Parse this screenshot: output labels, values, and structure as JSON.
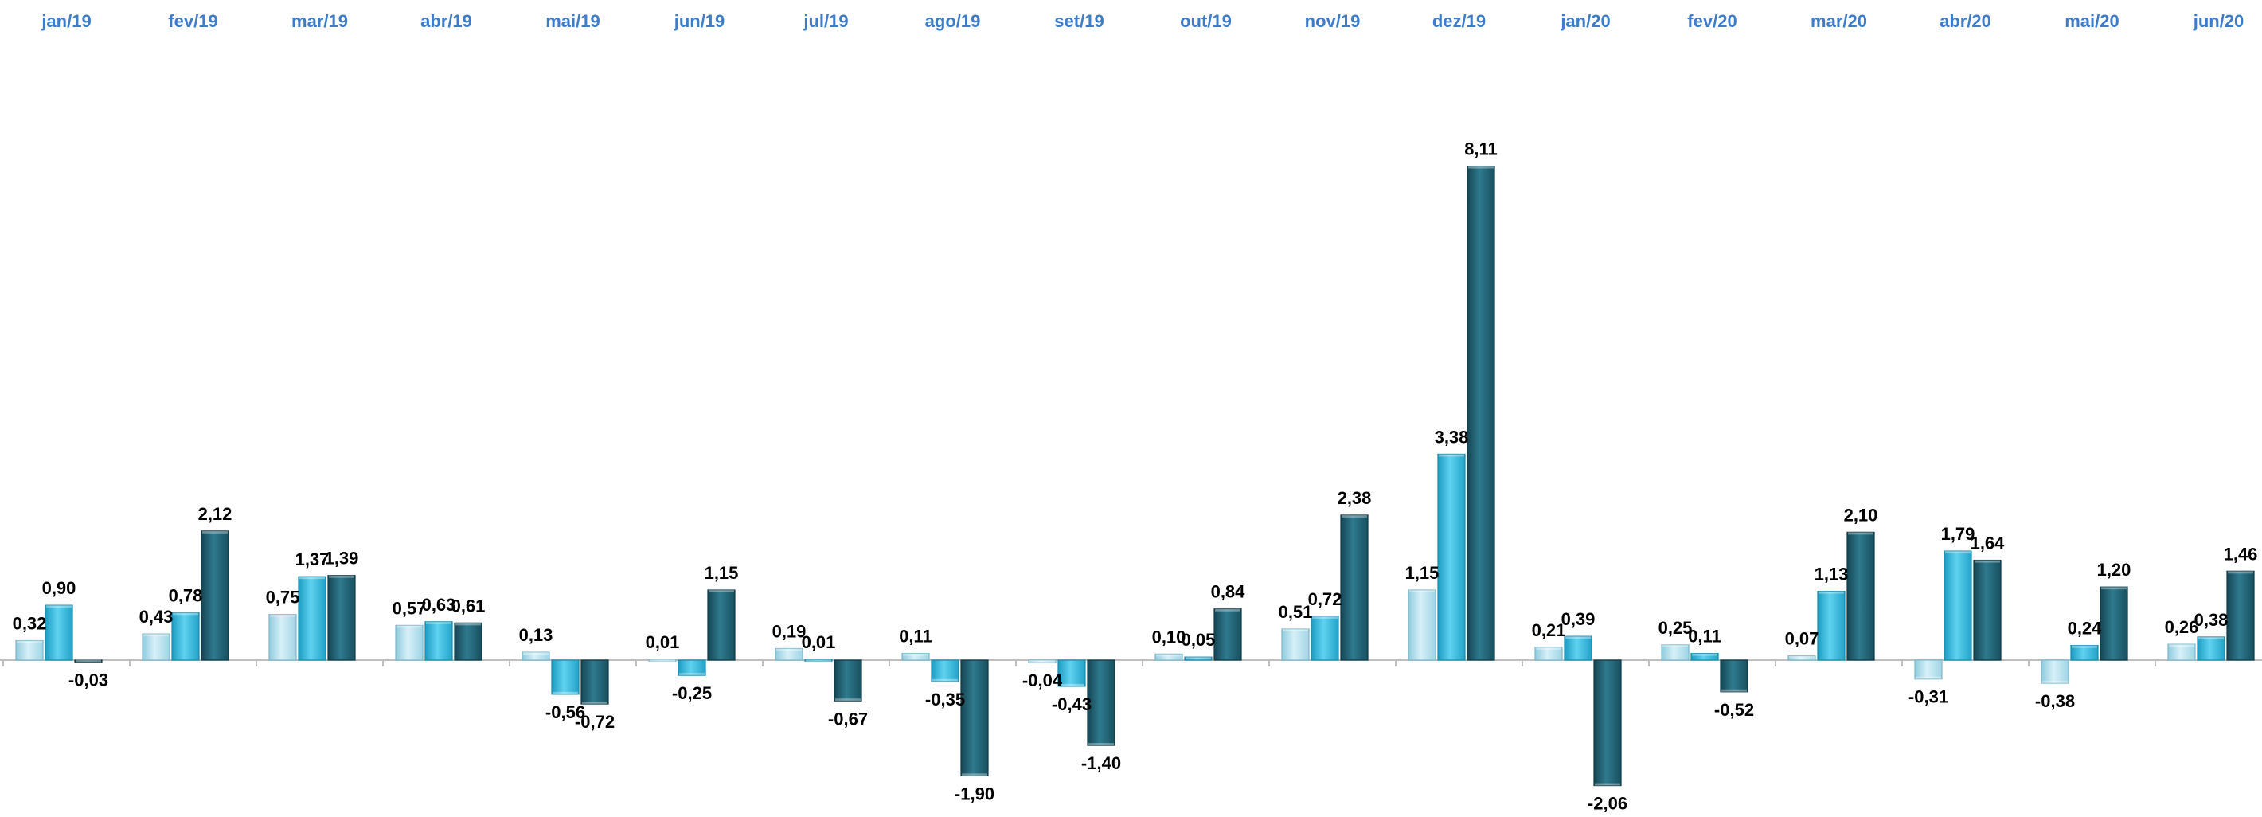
{
  "chart_data": {
    "type": "bar",
    "title": "",
    "xlabel": "",
    "ylabel": "",
    "ylim": [
      -2.5,
      8.5
    ],
    "grid": false,
    "legend": "none",
    "categories": [
      "jan/19",
      "fev/19",
      "mar/19",
      "abr/19",
      "mai/19",
      "jun/19",
      "jul/19",
      "ago/19",
      "set/19",
      "out/19",
      "nov/19",
      "dez/19",
      "jan/20",
      "fev/20",
      "mar/20",
      "abr/20",
      "mai/20",
      "jun/20"
    ],
    "series": [
      {
        "color": "#A8DCEB",
        "values": [
          0.32,
          0.43,
          0.75,
          0.57,
          0.13,
          0.01,
          0.19,
          0.11,
          -0.04,
          0.1,
          0.51,
          1.15,
          0.21,
          0.25,
          0.07,
          -0.31,
          -0.38,
          0.26
        ],
        "labels": [
          "0,32",
          "0,43",
          "0,75",
          "0,57",
          "0,13",
          "0,01",
          "0,19",
          "0,11",
          "-0,04",
          "0,10",
          "0,51",
          "1,15",
          "0,21",
          "0,25",
          "0,07",
          "-0,31",
          "-0,38",
          "0,26"
        ]
      },
      {
        "color": "#2FB4D8",
        "values": [
          0.9,
          0.78,
          1.37,
          0.63,
          -0.56,
          -0.25,
          0.01,
          -0.35,
          -0.43,
          0.05,
          0.72,
          3.38,
          0.39,
          0.11,
          1.13,
          1.79,
          0.24,
          0.38
        ],
        "labels": [
          "0,90",
          "0,78",
          "1,37",
          "0,63",
          "-0,56",
          "-0,25",
          "0,01",
          "-0,35",
          "-0,43",
          "0,05",
          "0,72",
          "3,38",
          "0,39",
          "0,11",
          "1,13",
          "1,79",
          "0,24",
          "0,38"
        ]
      },
      {
        "color": "#1E5C6E",
        "values": [
          -0.03,
          2.12,
          1.39,
          0.61,
          -0.72,
          1.15,
          -0.67,
          -1.9,
          -1.4,
          0.84,
          2.38,
          8.11,
          -2.06,
          -0.52,
          2.1,
          1.64,
          1.2,
          1.46
        ],
        "labels": [
          "-0,03",
          "2,12",
          "1,39",
          "0,61",
          "-0,72",
          "1,15",
          "-0,67",
          "-1,90",
          "-1,40",
          "0,84",
          "2,38",
          "8,11",
          "-2,06",
          "-0,52",
          "2,10",
          "1,64",
          "1,20",
          "1,46"
        ]
      }
    ]
  }
}
